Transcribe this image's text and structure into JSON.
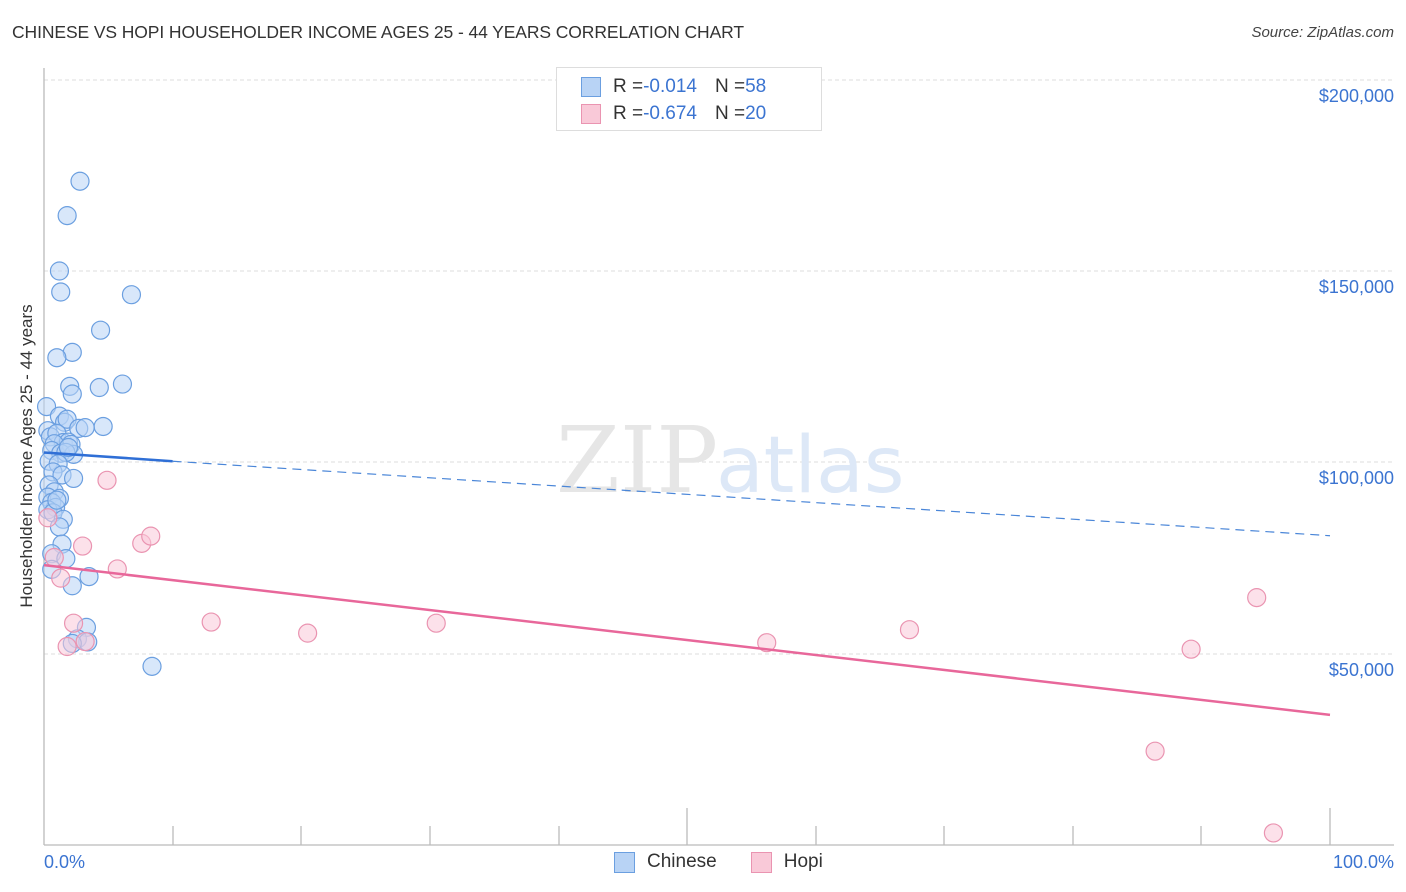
{
  "header": {
    "title": "CHINESE VS HOPI HOUSEHOLDER INCOME AGES 25 - 44 YEARS CORRELATION CHART",
    "source": "Source: ZipAtlas.com"
  },
  "legend": {
    "rows": [
      {
        "series": "Chinese",
        "r_label": "R = ",
        "r_value": "-0.014",
        "n_label": "N = ",
        "n_value": "58",
        "fill": "#b8d3f5",
        "stroke": "#6b9fe0"
      },
      {
        "series": "Hopi",
        "r_label": "R = ",
        "r_value": "-0.674",
        "n_label": "N = ",
        "n_value": "20",
        "fill": "#f9c9d8",
        "stroke": "#ea94b1"
      }
    ],
    "bottom": [
      {
        "label": "Chinese",
        "fill": "#b8d3f5",
        "stroke": "#6b9fe0"
      },
      {
        "label": "Hopi",
        "fill": "#f9c9d8",
        "stroke": "#ea94b1"
      }
    ]
  },
  "axes": {
    "y_label": "Householder Income Ages 25 - 44 years",
    "y_ticks": [
      "$200,000",
      "$150,000",
      "$100,000",
      "$50,000"
    ],
    "x_ticks": [
      "0.0%",
      "100.0%"
    ]
  },
  "watermark": {
    "zip": "ZIP",
    "atlas": "atlas"
  },
  "colors": {
    "blue": "#2f6fd6",
    "pink": "#e8679a",
    "tick_text": "#3b74d1"
  },
  "chart_data": {
    "type": "scatter",
    "title": "CHINESE VS HOPI HOUSEHOLDER INCOME AGES 25 - 44 YEARS CORRELATION CHART",
    "xlabel": "",
    "ylabel": "Householder Income Ages 25 - 44 years",
    "xlim": [
      0,
      100
    ],
    "ylim": [
      0,
      200000
    ],
    "x_tick_labels": [
      "0.0%",
      "100.0%"
    ],
    "y_tick_labels": [
      "$50,000",
      "$100,000",
      "$150,000",
      "$200,000"
    ],
    "grid": true,
    "legend_position": "top-center and bottom",
    "series": [
      {
        "name": "Chinese",
        "R": -0.014,
        "N": 58,
        "color": "#6b9fe0",
        "trend": {
          "x": [
            0,
            10,
            100
          ],
          "y": [
            102500,
            100200,
            80700
          ],
          "solid_until_x": 10
        },
        "points": [
          [
            2.8,
            173500
          ],
          [
            1.8,
            164500
          ],
          [
            1.2,
            150000
          ],
          [
            1.3,
            144500
          ],
          [
            6.8,
            143800
          ],
          [
            4.4,
            134500
          ],
          [
            2.2,
            128700
          ],
          [
            1.0,
            127300
          ],
          [
            4.3,
            119500
          ],
          [
            2.0,
            119800
          ],
          [
            2.2,
            117800
          ],
          [
            6.1,
            120400
          ],
          [
            0.2,
            114500
          ],
          [
            1.2,
            112000
          ],
          [
            1.6,
            110400
          ],
          [
            1.8,
            111200
          ],
          [
            4.6,
            109300
          ],
          [
            2.7,
            108800
          ],
          [
            3.2,
            109000
          ],
          [
            0.3,
            108200
          ],
          [
            0.5,
            106600
          ],
          [
            1.0,
            107500
          ],
          [
            1.5,
            105100
          ],
          [
            1.9,
            105200
          ],
          [
            2.1,
            104600
          ],
          [
            0.8,
            104800
          ],
          [
            0.6,
            103000
          ],
          [
            1.3,
            102300
          ],
          [
            2.3,
            102000
          ],
          [
            1.7,
            102500
          ],
          [
            0.4,
            100200
          ],
          [
            1.1,
            99500
          ],
          [
            0.7,
            97400
          ],
          [
            1.4,
            96600
          ],
          [
            2.3,
            95700
          ],
          [
            0.4,
            94000
          ],
          [
            0.8,
            92200
          ],
          [
            0.3,
            90800
          ],
          [
            1.2,
            90500
          ],
          [
            0.6,
            89400
          ],
          [
            0.9,
            88100
          ],
          [
            0.3,
            87500
          ],
          [
            0.7,
            86700
          ],
          [
            1.5,
            85000
          ],
          [
            1.2,
            83000
          ],
          [
            1.4,
            78500
          ],
          [
            0.6,
            76000
          ],
          [
            1.7,
            74700
          ],
          [
            0.6,
            71900
          ],
          [
            3.5,
            70000
          ],
          [
            2.2,
            67600
          ],
          [
            3.3,
            56700
          ],
          [
            2.6,
            53700
          ],
          [
            3.4,
            52900
          ],
          [
            2.2,
            52500
          ],
          [
            8.4,
            46500
          ],
          [
            1.0,
            90000
          ],
          [
            1.9,
            103800
          ]
        ]
      },
      {
        "name": "Hopi",
        "R": -0.674,
        "N": 20,
        "color": "#ea94b1",
        "trend": {
          "x": [
            0,
            100
          ],
          "y": [
            73000,
            33800
          ]
        },
        "points": [
          [
            4.9,
            95200
          ],
          [
            0.3,
            85400
          ],
          [
            0.8,
            75000
          ],
          [
            3.0,
            78000
          ],
          [
            7.6,
            78700
          ],
          [
            8.3,
            80600
          ],
          [
            5.7,
            72000
          ],
          [
            1.3,
            69600
          ],
          [
            2.3,
            57800
          ],
          [
            3.2,
            53000
          ],
          [
            1.8,
            51700
          ],
          [
            13.0,
            58100
          ],
          [
            20.5,
            55200
          ],
          [
            30.5,
            57800
          ],
          [
            56.2,
            52700
          ],
          [
            67.3,
            56100
          ],
          [
            89.2,
            51000
          ],
          [
            86.4,
            24300
          ],
          [
            94.3,
            64500
          ],
          [
            95.6,
            2900
          ]
        ]
      }
    ]
  }
}
